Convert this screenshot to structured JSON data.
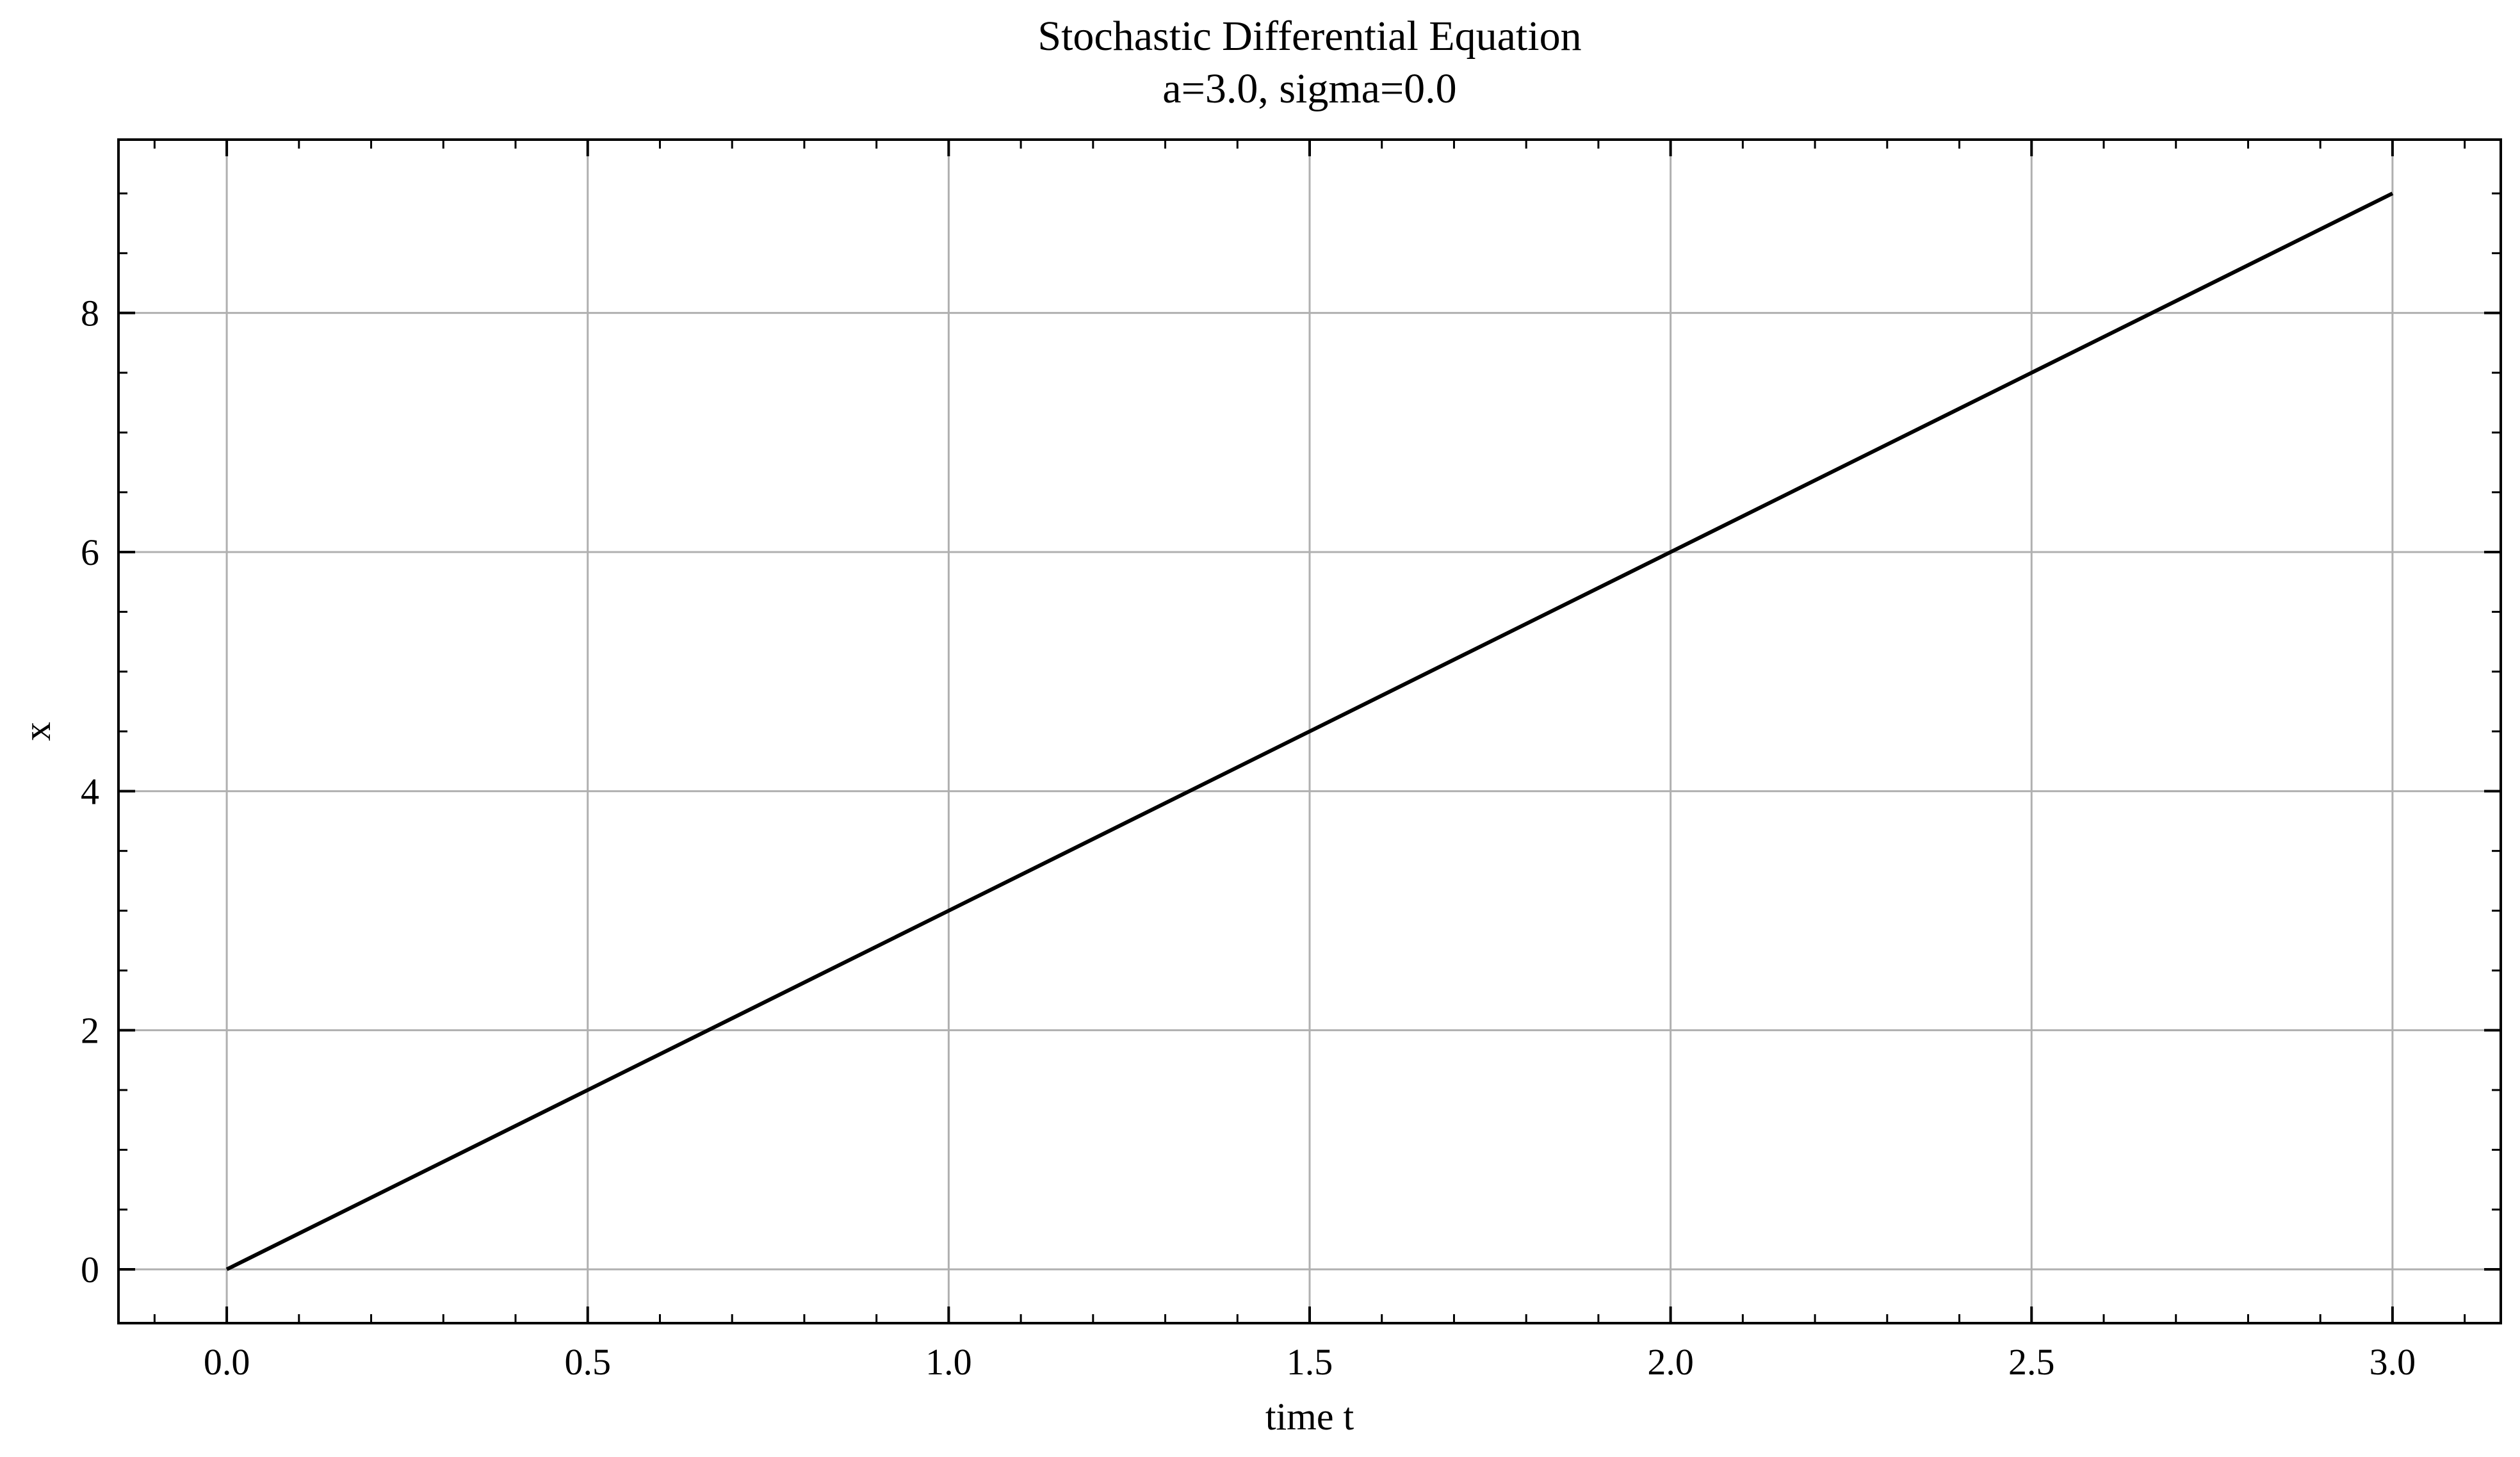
{
  "chart_data": {
    "type": "line",
    "title": "Stochastic Differential Equation",
    "subtitle": "a=3.0, sigma=0.0",
    "xlabel": "time t",
    "ylabel": "x",
    "xlim": [
      -0.15,
      3.15
    ],
    "ylim": [
      -0.45,
      9.45
    ],
    "xticks": [
      0.0,
      0.5,
      1.0,
      1.5,
      2.0,
      2.5,
      3.0
    ],
    "xtick_labels": [
      "0.0",
      "0.5",
      "1.0",
      "1.5",
      "2.0",
      "2.5",
      "3.0"
    ],
    "yticks": [
      0,
      2,
      4,
      6,
      8
    ],
    "ytick_labels": [
      "0",
      "2",
      "4",
      "6",
      "8"
    ],
    "grid": true,
    "series": [
      {
        "x": [
          0.0,
          0.5,
          1.0,
          1.5,
          2.0,
          2.5,
          3.0
        ],
        "y": [
          0.0,
          1.5,
          3.0,
          4.5,
          6.0,
          7.5,
          9.0
        ]
      }
    ],
    "colors": {
      "line": "#000000",
      "grid": "#b0b0b0",
      "axes": "#000000"
    }
  }
}
